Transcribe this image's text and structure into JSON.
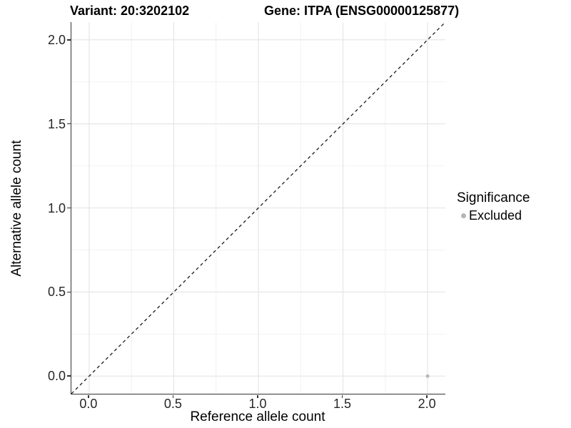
{
  "chart_data": {
    "type": "scatter",
    "title_left": "Variant: 20:3202102",
    "title_right": "Gene: ITPA (ENSG00000125877)",
    "xlabel": "Reference allele count",
    "ylabel": "Alternative allele count",
    "xlim": [
      -0.105,
      2.105
    ],
    "ylim": [
      -0.105,
      2.105
    ],
    "xticks": [
      0.0,
      0.5,
      1.0,
      1.5,
      2.0
    ],
    "yticks": [
      0.0,
      0.5,
      1.0,
      1.5,
      2.0
    ],
    "xtick_labels": [
      "0.0",
      "0.5",
      "1.0",
      "1.5",
      "2.0"
    ],
    "ytick_labels": [
      "0.0",
      "0.5",
      "1.0",
      "1.5",
      "2.0"
    ],
    "xminor": [
      0.25,
      0.75,
      1.25,
      1.75
    ],
    "yminor": [
      0.25,
      0.75,
      1.25,
      1.75
    ],
    "grid": true,
    "legend_position": "right",
    "reference_line": {
      "kind": "diagonal",
      "slope": 1,
      "intercept": 0,
      "style": "dashed",
      "color": "#1a1a1a"
    },
    "series": [
      {
        "name": "Excluded",
        "color": "#b8b8b8",
        "marker": "circle",
        "points": [
          {
            "x": 2.0,
            "y": 0.0
          }
        ]
      }
    ],
    "legend": {
      "title": "Significance",
      "entries": [
        {
          "label": "Excluded",
          "color": "#b5b5b5",
          "marker": "circle"
        }
      ]
    },
    "colors": {
      "axis_line": "#333333",
      "grid_major": "#e6e6e6",
      "grid_minor": "#f2f2f2",
      "point": "#b8b8b8",
      "background": "#ffffff"
    }
  }
}
